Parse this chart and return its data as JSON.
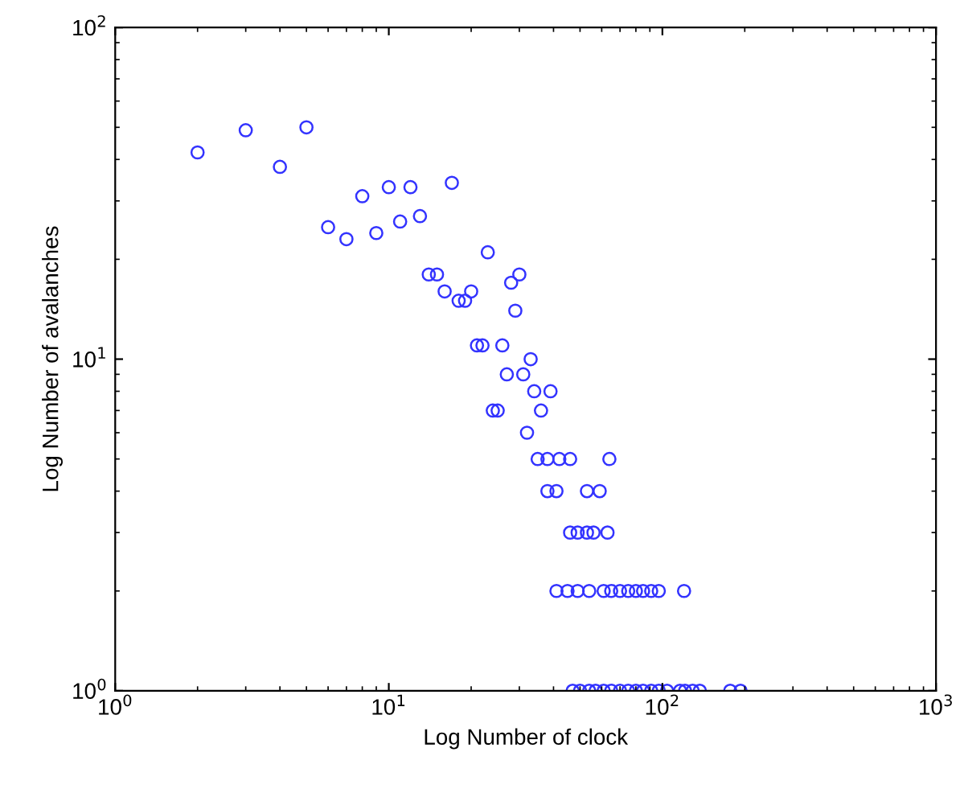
{
  "chart_data": {
    "type": "scatter",
    "xlabel": "Log Number of clock",
    "ylabel": "Log Number of avalanches",
    "log": "xy",
    "marker": "circle",
    "grid": false,
    "xlim": [
      1,
      1000
    ],
    "ylim": [
      1,
      100
    ],
    "xticks": [
      {
        "value": 1,
        "label": "10$^{0}$"
      },
      {
        "value": 10,
        "label": "10$^{1}$"
      },
      {
        "value": 100,
        "label": "10$^{2}$"
      },
      {
        "value": 1000,
        "label": "10$^{3}$"
      }
    ],
    "yticks": [
      {
        "value": 1,
        "label": "10$^{0}$"
      },
      {
        "value": 10,
        "label": "10$^{1}$"
      },
      {
        "value": 100,
        "label": "10$^{2}$"
      }
    ],
    "series": [
      {
        "color": "#3333ff",
        "x": [
          2,
          3,
          4,
          5,
          6,
          7,
          8,
          9,
          10,
          11,
          12,
          13,
          17,
          23,
          14,
          15,
          16,
          18,
          19,
          20,
          28,
          30,
          29,
          21,
          22,
          26,
          33,
          27,
          31,
          34,
          39,
          24,
          25,
          36,
          32,
          35,
          38,
          42,
          46,
          64,
          38,
          41,
          53,
          59,
          46,
          49,
          53,
          56,
          63,
          41,
          45,
          49,
          54,
          61,
          65,
          70,
          75,
          80,
          85,
          91,
          97,
          120,
          47,
          50,
          54,
          57,
          61,
          65,
          70,
          75,
          80,
          85,
          91,
          97,
          104,
          116,
          121,
          129,
          137,
          177,
          193
        ],
        "values": [
          42,
          49,
          38,
          50,
          25,
          23,
          31,
          24,
          33,
          26,
          33,
          27,
          34,
          21,
          18,
          18,
          16,
          15,
          15,
          16,
          17,
          18,
          14,
          11,
          11,
          11,
          10,
          9,
          9,
          8,
          8,
          7,
          7,
          7,
          6,
          5,
          5,
          5,
          5,
          5,
          4,
          4,
          4,
          4,
          3,
          3,
          3,
          3,
          3,
          2,
          2,
          2,
          2,
          2,
          2,
          2,
          2,
          2,
          2,
          2,
          2,
          2,
          1,
          1,
          1,
          1,
          1,
          1,
          1,
          1,
          1,
          1,
          1,
          1,
          1,
          1,
          1,
          1,
          1,
          1,
          1
        ]
      }
    ]
  }
}
